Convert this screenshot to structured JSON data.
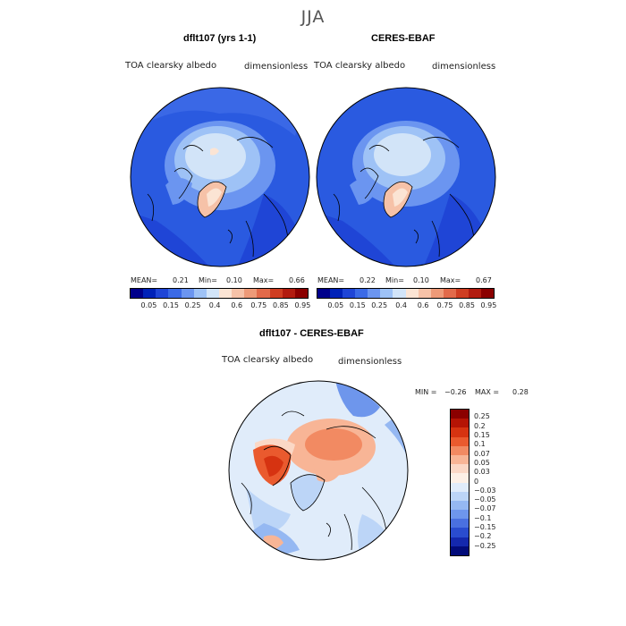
{
  "season_title": "JJA",
  "left_panel": {
    "title": "dflt107 (yrs 1-1)",
    "variable": "TOA clearsky albedo",
    "units": "dimensionless",
    "stats": {
      "mean_label": "MEAN=",
      "mean": "0.21",
      "min_label": "Min=",
      "min": "0.10",
      "max_label": "Max=",
      "max": "0.66"
    }
  },
  "right_panel": {
    "title": "CERES-EBAF",
    "variable": "TOA clearsky albedo",
    "units": "dimensionless",
    "stats": {
      "mean_label": "MEAN=",
      "mean": "0.22",
      "min_label": "Min=",
      "min": "0.10",
      "max_label": "Max=",
      "max": "0.67"
    }
  },
  "diff_panel": {
    "title": "dflt107 - CERES-EBAF",
    "variable": "TOA clearsky albedo",
    "units": "dimensionless",
    "min_label": "MIN =",
    "min": "−0.26",
    "max_label": "MAX =",
    "max": "0.28"
  },
  "colorbar_top": {
    "colors": [
      "#00008b",
      "#0022b8",
      "#1f45d6",
      "#3b6ae6",
      "#6b95f0",
      "#9ec2f6",
      "#d2e4f8",
      "#fbe4d4",
      "#f6c2a8",
      "#ee9a78",
      "#e26a4a",
      "#cf3e22",
      "#b21c10",
      "#8b0000"
    ],
    "ticks": [
      "0.05",
      "0.15",
      "0.25",
      "0.4",
      "0.6",
      "0.75",
      "0.85",
      "0.95"
    ]
  },
  "colorbar_diff": {
    "colors_top_to_bottom": [
      "#8b0000",
      "#b51405",
      "#d63311",
      "#ea5a2e",
      "#f28a62",
      "#f8b596",
      "#fbd8c6",
      "#fdf0e6",
      "#e0ecfa",
      "#bcd5f7",
      "#95b8f2",
      "#6e96ec",
      "#4a70e0",
      "#2a4ccf",
      "#1428ad",
      "#020b7a"
    ],
    "ticks": [
      "0.25",
      "0.2",
      "0.15",
      "0.1",
      "0.07",
      "0.05",
      "0.03",
      "0",
      "−0.03",
      "−0.05",
      "−0.07",
      "−0.1",
      "−0.15",
      "−0.2",
      "−0.25"
    ]
  },
  "icons": {
    "map_left": "arctic-polar-map-icon",
    "map_right": "arctic-polar-map-icon",
    "map_diff": "arctic-difference-map-icon"
  }
}
